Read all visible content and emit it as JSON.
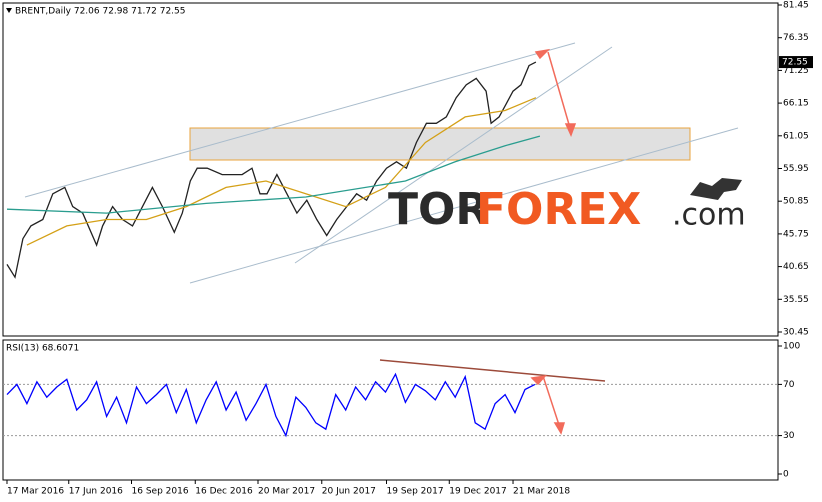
{
  "chart_data": [
    {
      "type": "line",
      "title": "BRENT,Daily  72.06 72.98 71.72 72.55",
      "xlim": [
        -4,
        774
      ],
      "ylim": [
        30.45,
        81.45
      ],
      "yticks": [
        81.45,
        76.35,
        71.25,
        66.15,
        61.05,
        55.95,
        50.85,
        45.75,
        40.65,
        35.55,
        30.45
      ],
      "series": [
        {
          "color": "#222222",
          "x": [
            0,
            8,
            16,
            24,
            36,
            46,
            58,
            66,
            76,
            90,
            96,
            106,
            116,
            126,
            136,
            146,
            156,
            168,
            176,
            184,
            191,
            201,
            216,
            236,
            246,
            254,
            261,
            271,
            281,
            291,
            301,
            311,
            321,
            331,
            341,
            351,
            361,
            371,
            381,
            391,
            401,
            411,
            421,
            431,
            441,
            451,
            461,
            471,
            481,
            486,
            494,
            501,
            508,
            516,
            524,
            531
          ],
          "values": [
            41,
            39,
            45,
            47,
            48,
            52,
            53,
            50,
            49,
            44,
            47,
            50,
            48,
            47,
            50,
            53,
            50,
            46,
            49,
            54,
            56,
            56,
            55,
            55,
            56,
            52,
            52,
            55,
            52,
            49,
            51,
            48,
            45.5,
            48,
            50,
            52,
            51,
            54,
            56,
            57,
            56,
            60,
            63,
            63,
            64,
            67,
            69,
            70,
            68,
            63,
            64,
            66,
            68,
            69,
            72,
            72.55
          ]
        },
        {
          "color": "#d4a017",
          "x": [
            20,
            60,
            100,
            140,
            180,
            220,
            260,
            300,
            340,
            380,
            420,
            460,
            500,
            531
          ],
          "values": [
            44,
            47,
            48,
            48,
            50,
            53,
            54,
            52,
            50,
            53,
            60,
            64,
            65,
            67
          ]
        },
        {
          "color": "#2a9d8f",
          "x": [
            0,
            100,
            200,
            300,
            400,
            450,
            500,
            535
          ],
          "values": [
            49.6,
            49,
            50.5,
            51.5,
            54,
            57,
            59.5,
            61
          ]
        }
      ],
      "logo": {
        "part1": "TOR",
        "part2": "FOREX",
        "part3": ".com"
      }
    },
    {
      "type": "line",
      "title": "RSI(13) 68.6071",
      "xlim": [
        -4,
        774
      ],
      "ylim": [
        0,
        100
      ],
      "yticks": [
        100,
        70,
        30,
        0
      ],
      "xticks": [
        {
          "value": 0,
          "label": "17 Mar 2016"
        },
        {
          "value": 62,
          "label": "17 Jun 2016"
        },
        {
          "value": 125,
          "label": "16 Sep 2016"
        },
        {
          "value": 189,
          "label": "16 Dec 2016"
        },
        {
          "value": 252,
          "label": "20 Mar 2017"
        },
        {
          "value": 316,
          "label": "20 Jun 2017"
        },
        {
          "value": 381,
          "label": "19 Sep 2017"
        },
        {
          "value": 444,
          "label": "19 Dec 2017"
        },
        {
          "value": 508,
          "label": "21 Mar 2018"
        }
      ],
      "series": [
        {
          "color": "#0000ff",
          "x": [
            0,
            10,
            20,
            30,
            40,
            50,
            60,
            70,
            80,
            90,
            100,
            110,
            120,
            130,
            140,
            150,
            160,
            170,
            180,
            190,
            200,
            210,
            220,
            230,
            240,
            250,
            260,
            270,
            280,
            290,
            300,
            310,
            320,
            330,
            340,
            350,
            360,
            370,
            380,
            390,
            400,
            410,
            420,
            430,
            440,
            450,
            460,
            470,
            480,
            490,
            500,
            510,
            520,
            530
          ],
          "values": [
            62,
            70,
            55,
            72,
            60,
            68,
            74,
            50,
            58,
            72,
            45,
            60,
            40,
            68,
            55,
            62,
            70,
            48,
            66,
            40,
            58,
            72,
            50,
            64,
            42,
            55,
            70,
            45,
            30,
            60,
            52,
            40,
            35,
            62,
            50,
            68,
            58,
            72,
            64,
            78,
            56,
            70,
            65,
            58,
            72,
            60,
            76,
            40,
            35,
            55,
            62,
            48,
            66,
            70
          ]
        }
      ]
    }
  ]
}
